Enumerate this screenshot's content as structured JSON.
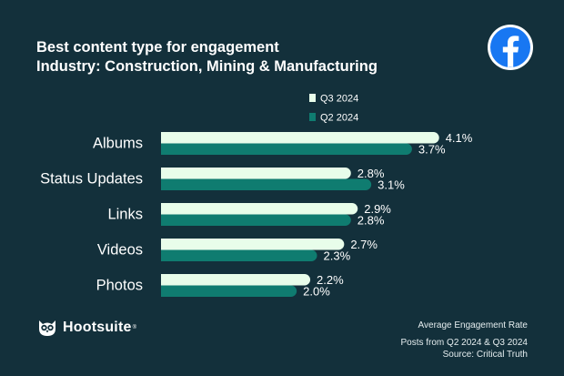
{
  "header": {
    "title_line1": "Best content type for engagement",
    "title_line2": "Industry: Construction, Mining & Manufacturing"
  },
  "icons": {
    "platform": "facebook-logo-icon",
    "brand": "hootsuite-owl-icon"
  },
  "colors": {
    "background": "#13303b",
    "q3": "#e8fdea",
    "q2": "#0f7c70",
    "facebook_blue": "#1877f2"
  },
  "chart_data": {
    "type": "bar",
    "orientation": "horizontal",
    "categories": [
      "Albums",
      "Status Updates",
      "Links",
      "Videos",
      "Photos"
    ],
    "series": [
      {
        "name": "Q3 2024",
        "values": [
          4.1,
          2.8,
          2.9,
          2.7,
          2.2
        ],
        "labels": [
          "4.1%",
          "2.8%",
          "2.9%",
          "2.7%",
          "2.2%"
        ],
        "color": "#e8fdea"
      },
      {
        "name": "Q2 2024",
        "values": [
          3.7,
          3.1,
          2.8,
          2.3,
          2.0
        ],
        "labels": [
          "3.7%",
          "3.1%",
          "2.8%",
          "2.3%",
          "2.0%"
        ],
        "color": "#0f7c70"
      }
    ],
    "xlim": [
      0,
      4.6
    ],
    "unit": "%",
    "legend": "top"
  },
  "footer": {
    "brand": "Hootsuite",
    "brand_mark": "®",
    "metric": "Average Engagement Rate",
    "posts": "Posts from Q2 2024 & Q3 2024",
    "source": "Source: Critical Truth"
  }
}
